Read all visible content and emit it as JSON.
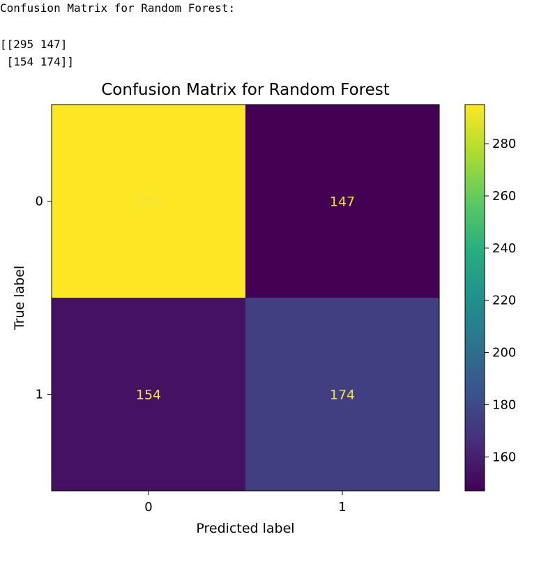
{
  "output": {
    "header": "Confusion Matrix for Random Forest:",
    "matrix_line1": "[[295 147]",
    "matrix_line2": " [154 174]]"
  },
  "chart_data": {
    "type": "heatmap",
    "title": "Confusion Matrix for Random Forest",
    "xlabel": "Predicted label",
    "ylabel": "True label",
    "x_categories": [
      "0",
      "1"
    ],
    "y_categories": [
      "0",
      "1"
    ],
    "values": [
      [
        295,
        147
      ],
      [
        154,
        174
      ]
    ],
    "colormap": "viridis",
    "colorbar": {
      "range": [
        147,
        295
      ],
      "ticks": [
        160,
        180,
        200,
        220,
        240,
        260,
        280
      ]
    },
    "cell_text_color": "#f0e442"
  }
}
